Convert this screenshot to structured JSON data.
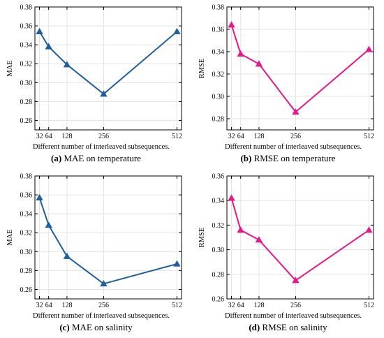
{
  "chart_data": [
    {
      "type": "line",
      "panel_id": "a",
      "caption_letter": "(a)",
      "caption_text": "MAE on temperature",
      "xlabel": "Different number of interleaved subsequences.",
      "ylabel": "MAE",
      "x": [
        32,
        64,
        128,
        256,
        512
      ],
      "x_ticks": [
        32,
        64,
        128,
        256,
        512
      ],
      "ylim": [
        0.25,
        0.38
      ],
      "y_ticks": [
        0.26,
        0.28,
        0.3,
        0.32,
        0.34,
        0.36,
        0.38
      ],
      "y_tick_labels": [
        "0.26",
        "0.28",
        "0.30",
        "0.32",
        "0.34",
        "0.36",
        "0.38"
      ],
      "series": [
        {
          "values": [
            0.354,
            0.338,
            0.319,
            0.288,
            0.354
          ],
          "color": "#1f5fa0",
          "marker": "triangle"
        }
      ],
      "grid": true
    },
    {
      "type": "line",
      "panel_id": "b",
      "caption_letter": "(b)",
      "caption_text": "RMSE on temperature",
      "xlabel": "Different number of interleaved subsequences.",
      "ylabel": "RMSE",
      "x": [
        32,
        64,
        128,
        256,
        512
      ],
      "x_ticks": [
        32,
        64,
        128,
        256,
        512
      ],
      "ylim": [
        0.27,
        0.38
      ],
      "y_ticks": [
        0.28,
        0.3,
        0.32,
        0.34,
        0.36,
        0.38
      ],
      "y_tick_labels": [
        "0.28",
        "0.30",
        "0.32",
        "0.34",
        "0.36",
        "0.38"
      ],
      "series": [
        {
          "values": [
            0.364,
            0.338,
            0.329,
            0.286,
            0.342
          ],
          "color": "#e8178a",
          "marker": "triangle"
        }
      ],
      "grid": true
    },
    {
      "type": "line",
      "panel_id": "c",
      "caption_letter": "(c)",
      "caption_text": "MAE on salinity",
      "xlabel": "Different number of interleaved subsequences.",
      "ylabel": "MAE",
      "x": [
        32,
        64,
        128,
        256,
        512
      ],
      "x_ticks": [
        32,
        64,
        128,
        256,
        512
      ],
      "ylim": [
        0.25,
        0.38
      ],
      "y_ticks": [
        0.26,
        0.28,
        0.3,
        0.32,
        0.34,
        0.36,
        0.38
      ],
      "y_tick_labels": [
        "0.26",
        "0.28",
        "0.30",
        "0.32",
        "0.34",
        "0.36",
        "0.38"
      ],
      "series": [
        {
          "values": [
            0.357,
            0.328,
            0.295,
            0.266,
            0.287
          ],
          "color": "#1f5fa0",
          "marker": "triangle"
        }
      ],
      "grid": true
    },
    {
      "type": "line",
      "panel_id": "d",
      "caption_letter": "(d)",
      "caption_text": "RMSE on salinity",
      "xlabel": "Different number of interleaved subsequences.",
      "ylabel": "RMSE",
      "x": [
        32,
        64,
        128,
        256,
        512
      ],
      "x_ticks": [
        32,
        64,
        128,
        256,
        512
      ],
      "ylim": [
        0.26,
        0.36
      ],
      "y_ticks": [
        0.26,
        0.28,
        0.3,
        0.32,
        0.34,
        0.36
      ],
      "y_tick_labels": [
        "0.26",
        "0.28",
        "0.30",
        "0.32",
        "0.34",
        "0.36"
      ],
      "series": [
        {
          "values": [
            0.342,
            0.316,
            0.308,
            0.275,
            0.316
          ],
          "color": "#e8178a",
          "marker": "triangle"
        }
      ],
      "grid": true
    }
  ]
}
